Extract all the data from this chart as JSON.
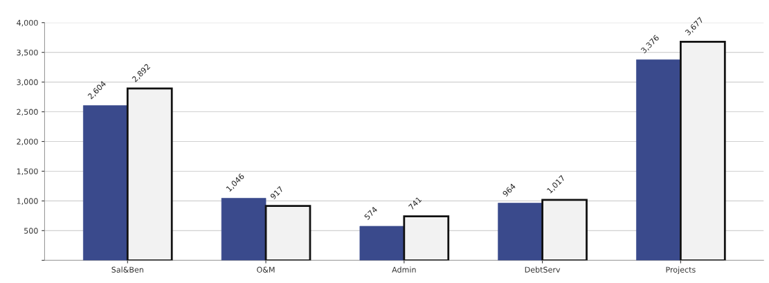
{
  "chart_data": {
    "type": "bar",
    "categories": [
      "Sal&Ben",
      "O&M",
      "Admin",
      "DebtServ",
      "Projects"
    ],
    "series": [
      {
        "color": "#3a4a8c",
        "values": [
          2604,
          1046,
          574,
          964,
          3376
        ],
        "value_labels": [
          "2,604",
          "1,046",
          "574",
          "964",
          "3,376"
        ]
      },
      {
        "color": "#f2f2f2",
        "values": [
          2892,
          917,
          741,
          1017,
          3677
        ],
        "value_labels": [
          "2,892",
          "917",
          "741",
          "1,017",
          "3,677"
        ]
      }
    ],
    "ylim": [
      0,
      4000
    ],
    "yticks": [
      {
        "value": 0,
        "label": null
      },
      500,
      {
        "value": 1000,
        "label": "1,000"
      },
      {
        "value": 1500,
        "label": "1,500"
      },
      {
        "value": 2000,
        "label": "2,000"
      },
      {
        "value": 2500,
        "label": "2,500"
      },
      {
        "value": 3000,
        "label": "3,000"
      },
      {
        "value": 3500,
        "label": "3,500"
      },
      {
        "value": 4000,
        "label": "4,000"
      }
    ],
    "grid": "y"
  }
}
